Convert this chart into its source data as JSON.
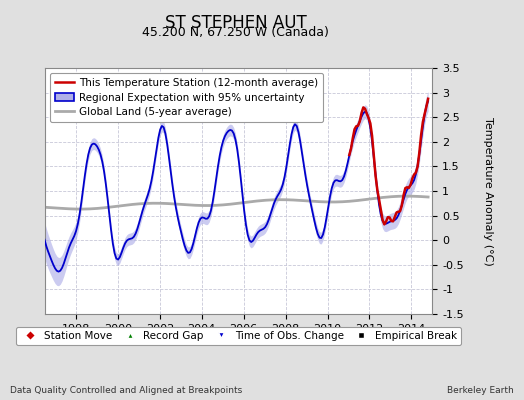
{
  "title": "ST STEPHEN AUT",
  "subtitle": "45.200 N, 67.250 W (Canada)",
  "ylabel": "Temperature Anomaly (°C)",
  "footer_left": "Data Quality Controlled and Aligned at Breakpoints",
  "footer_right": "Berkeley Earth",
  "xlim": [
    1996.5,
    2015.0
  ],
  "ylim": [
    -1.5,
    3.5
  ],
  "yticks": [
    -1.5,
    -1.0,
    -0.5,
    0.0,
    0.5,
    1.0,
    1.5,
    2.0,
    2.5,
    3.0,
    3.5
  ],
  "xticks": [
    1998,
    2000,
    2002,
    2004,
    2006,
    2008,
    2010,
    2012,
    2014
  ],
  "background_color": "#e0e0e0",
  "plot_bg_color": "#ffffff",
  "grid_color": "#c8c8d8",
  "blue_line_color": "#0000cc",
  "blue_fill_color": "#b0b0e8",
  "red_line_color": "#cc0000",
  "gray_line_color": "#aaaaaa",
  "title_fontsize": 12,
  "subtitle_fontsize": 9,
  "axis_fontsize": 8,
  "legend_fontsize": 7.5
}
